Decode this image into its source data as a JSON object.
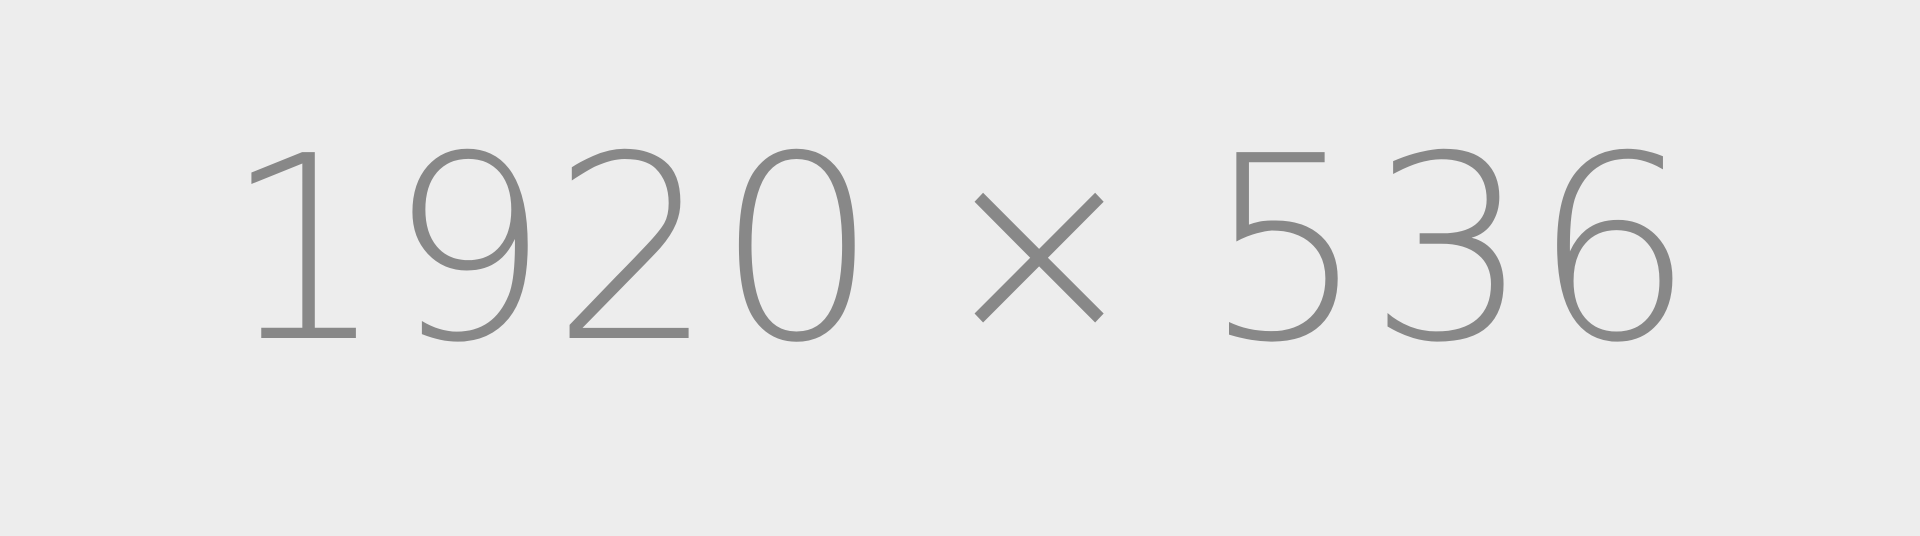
{
  "placeholder": {
    "width_text": "1920",
    "separator": "×",
    "height_text": "536",
    "background_color": "#ededed",
    "text_color": "#888888"
  }
}
